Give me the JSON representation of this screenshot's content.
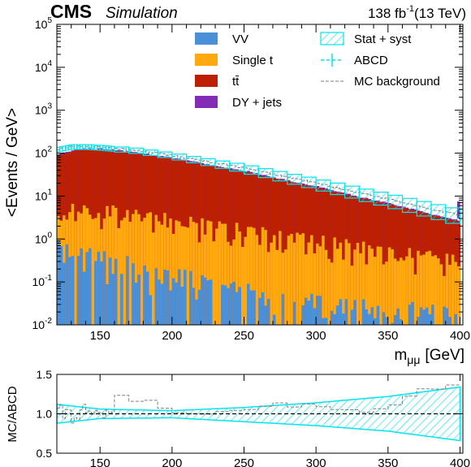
{
  "header": {
    "experiment": "CMS",
    "tag": "Simulation",
    "lumi": "138 fb",
    "lumi_exp": "-1",
    "energy": "(13 TeV)"
  },
  "colors": {
    "VV": "#4a90d9",
    "Single t": "#ffa90e",
    "ttbar": "#bd1f01",
    "DY + jets": "#832db6",
    "stat_syst": "#00e5ee",
    "mc_background": "#808080"
  },
  "chart_data": [
    {
      "type": "stacked-histogram",
      "ylabel": "<Events / GeV>",
      "xlabel": "m",
      "xlabel_sub": "μμ",
      "xlabel_unit": "[GeV]",
      "yscale": "log",
      "xlim": [
        120,
        402
      ],
      "ylim": [
        0.01,
        100000
      ],
      "x_ticks": [
        150,
        200,
        250,
        300,
        350,
        400
      ],
      "y_ticks": [
        {
          "base": "10",
          "exp": "-2",
          "value": 0.01
        },
        {
          "base": "10",
          "exp": "-1",
          "value": 0.1
        },
        {
          "base": "10",
          "exp": "0",
          "value": 1
        },
        {
          "base": "10",
          "exp": "1",
          "value": 10
        },
        {
          "base": "10",
          "exp": "2",
          "value": 100
        },
        {
          "base": "10",
          "exp": "3",
          "value": 1000
        },
        {
          "base": "10",
          "exp": "4",
          "value": 10000
        },
        {
          "base": "10",
          "exp": "5",
          "value": 100000
        }
      ],
      "legend": [
        {
          "key": "VV",
          "label": "VV",
          "style": "fill"
        },
        {
          "key": "Single t",
          "label": "Single t",
          "style": "fill"
        },
        {
          "key": "ttbar",
          "label": "tt̄",
          "style": "fill"
        },
        {
          "key": "DY + jets",
          "label": "DY + jets",
          "style": "fill"
        },
        {
          "key": "stat_syst",
          "label": "Stat + syst",
          "style": "hatch"
        },
        {
          "key": "abcd",
          "label": "ABCD",
          "style": "errorbar"
        },
        {
          "key": "mc_background",
          "label": "MC background",
          "style": "dashed"
        }
      ],
      "x_range": [
        120,
        400
      ],
      "bin_width_gev": 2,
      "curves": {
        "ttbar_total_points": [
          [
            120,
            85
          ],
          [
            130,
            110
          ],
          [
            140,
            125
          ],
          [
            150,
            120
          ],
          [
            175,
            100
          ],
          [
            200,
            75
          ],
          [
            250,
            37
          ],
          [
            300,
            16
          ],
          [
            350,
            6.5
          ],
          [
            400,
            2.5
          ]
        ],
        "single_t_points": [
          [
            120,
            5
          ],
          [
            150,
            4.6
          ],
          [
            200,
            2.7
          ],
          [
            250,
            1.6
          ],
          [
            300,
            0.9
          ],
          [
            350,
            0.5
          ],
          [
            400,
            0.3
          ]
        ],
        "vv_points": [
          [
            120,
            0.5
          ],
          [
            150,
            0.3
          ],
          [
            200,
            0.12
          ],
          [
            250,
            0.05
          ],
          [
            300,
            0.03
          ],
          [
            350,
            0.02
          ],
          [
            400,
            0.015
          ]
        ],
        "dy_extra_fraction": 0.05,
        "abcd_band_points": [
          [
            120,
            120
          ],
          [
            130,
            140
          ],
          [
            140,
            140
          ],
          [
            150,
            135
          ],
          [
            175,
            115
          ],
          [
            200,
            88
          ],
          [
            250,
            45
          ],
          [
            300,
            20
          ],
          [
            350,
            8.5
          ],
          [
            400,
            3.5
          ]
        ],
        "abcd_band_rel_width": [
          [
            120,
            0.12
          ],
          [
            200,
            0.15
          ],
          [
            300,
            0.28
          ],
          [
            400,
            0.4
          ]
        ]
      }
    },
    {
      "type": "ratio",
      "ylabel": "MC/ABCD",
      "xlim": [
        120,
        402
      ],
      "ylim": [
        0.5,
        1.5
      ],
      "x_ticks": [
        150,
        200,
        250,
        300,
        350,
        400
      ],
      "y_ticks": [
        "0.5",
        "1.0",
        "1.5"
      ],
      "reference_line": 1.0,
      "band_upper_points": [
        [
          120,
          1.12
        ],
        [
          150,
          1.06
        ],
        [
          200,
          1.04
        ],
        [
          250,
          1.08
        ],
        [
          300,
          1.14
        ],
        [
          350,
          1.22
        ],
        [
          400,
          1.34
        ]
      ],
      "band_lower_points": [
        [
          120,
          0.88
        ],
        [
          150,
          0.94
        ],
        [
          200,
          0.95
        ],
        [
          250,
          0.9
        ],
        [
          300,
          0.85
        ],
        [
          350,
          0.78
        ],
        [
          400,
          0.66
        ]
      ],
      "mc_ratio_values": [
        1.22,
        1.1,
        1.25,
        1.15,
        1.05,
        0.98,
        1.0,
        1.02,
        1.08,
        1.12,
        1.1,
        1.08,
        1.06,
        1.05,
        1.1,
        1.2,
        1.3,
        1.4
      ]
    }
  ]
}
